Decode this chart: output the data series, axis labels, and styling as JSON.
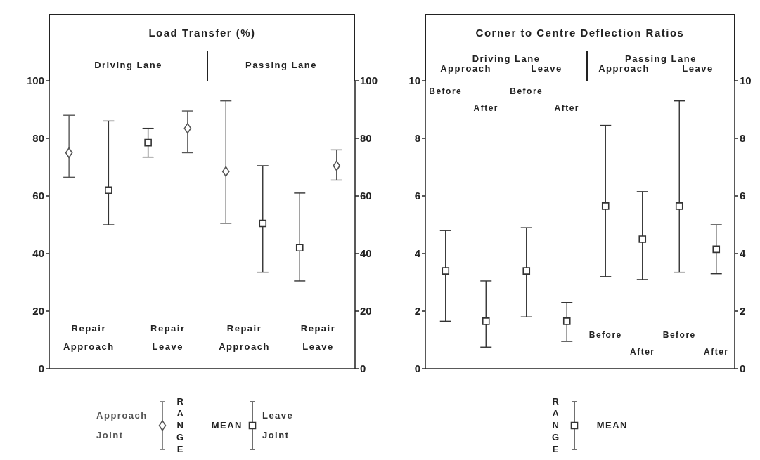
{
  "chart_data": [
    {
      "type": "scatter",
      "title": "Load Transfer (%)",
      "subtitle": "Driving Lane",
      "categories": [
        null,
        null,
        null,
        null
      ],
      "ylim": [
        0,
        100
      ],
      "yticks": [
        0,
        20,
        40,
        60,
        80,
        100
      ],
      "tick_labels": "y",
      "legend": "bottom",
      "annotations": [
        "Repair Approach",
        "Repair Leave",
        "RANGE",
        "MEAN"
      ],
      "series": [
        {
          "name": "Approach Joint",
          "color": "#555555",
          "marker": "diamond",
          "values": [
            75,
            null,
            null,
            83.5
          ],
          "errors": [
            [
              66.5,
              88
            ],
            null,
            null,
            [
              75,
              89.5
            ]
          ]
        },
        {
          "name": "Leave Joint",
          "color": "#333333",
          "marker": "square",
          "values": [
            null,
            62,
            78.5,
            null
          ],
          "errors": [
            null,
            [
              50,
              86
            ],
            5,
            null
          ]
        }
      ]
    },
    {
      "type": "scatter",
      "subtitle": "Passing Lane",
      "categories": [
        null,
        null,
        null,
        null
      ],
      "ylim": [
        0,
        100
      ],
      "yticks": [
        0,
        20,
        40,
        60,
        80,
        100
      ],
      "tick_labels": "y",
      "annotations": [
        "Repair Approach",
        "Repair Leave"
      ],
      "series": [
        {
          "color": "#555555",
          "marker": "diamond",
          "values": [
            68.5,
            null,
            null,
            70.5
          ],
          "errors": [
            [
              50.5,
              93
            ],
            null,
            null,
            [
              65.5,
              76
            ]
          ]
        },
        {
          "color": "#333333",
          "marker": "square",
          "values": [
            null,
            50.5,
            42,
            null
          ],
          "errors": [
            null,
            [
              33.5,
              70.5
            ],
            [
              30.5,
              61
            ],
            null
          ]
        }
      ]
    },
    {
      "type": "scatter",
      "title": "Corner to Centre Deflection Ratios",
      "subtitle": "Driving Lane",
      "categories": [
        "Before",
        "After",
        "Before",
        "After"
      ],
      "ylim": [
        0,
        10
      ],
      "yticks": [
        0,
        2,
        4,
        6,
        8,
        10
      ],
      "tick_labels": "y",
      "annotations": [
        "Approach",
        "Leave",
        "RANGE",
        "MEAN"
      ],
      "series": [
        {
          "color": "#333333",
          "marker": "square",
          "values": [
            3.4,
            1.65,
            3.4,
            1.65
          ],
          "errors": [
            [
              1.65,
              4.8
            ],
            [
              0.75,
              3.05
            ],
            [
              1.8,
              4.9
            ],
            [
              0.95,
              2.3
            ]
          ]
        }
      ]
    },
    {
      "type": "scatter",
      "subtitle": "Passing Lane",
      "categories": [
        "Before",
        "After",
        "Before",
        "After"
      ],
      "ylim": [
        0,
        10
      ],
      "yticks": [
        0,
        2,
        4,
        6,
        8,
        10
      ],
      "tick_labels": "y",
      "annotations": [
        "Approach",
        "Leave"
      ],
      "series": [
        {
          "color": "#333333",
          "marker": "square",
          "values": [
            5.65,
            4.5,
            5.65,
            4.15
          ],
          "errors": [
            [
              3.2,
              8.45
            ],
            [
              3.1,
              6.15
            ],
            [
              3.35,
              9.3
            ],
            [
              3.3,
              5
            ]
          ]
        }
      ]
    }
  ]
}
